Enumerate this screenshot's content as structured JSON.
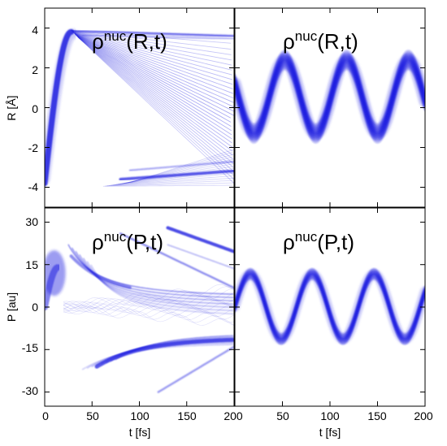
{
  "chart_data": [
    {
      "type": "heatmap",
      "panel": "top-left",
      "title": {
        "base": "ρ",
        "sup": "nuc",
        "args": "(R,t)"
      },
      "ylabel": "R [Å]",
      "xlim": [
        0,
        200
      ],
      "ylim": [
        -5,
        5
      ],
      "yticks": [
        "4",
        "2",
        "0",
        "-2",
        "-4"
      ],
      "yticks_values": [
        4,
        2,
        0,
        -2,
        -4
      ],
      "xticks_values": [
        0,
        50,
        100,
        150,
        200
      ],
      "color": "#1f1fe0",
      "grid": false
    },
    {
      "type": "heatmap",
      "panel": "top-right",
      "title": {
        "base": "ρ",
        "sup": "nuc",
        "args": "(R,t)"
      },
      "xlim": [
        0,
        200
      ],
      "ylim": [
        -5,
        5
      ],
      "xticks_values": [
        0,
        50,
        100,
        150,
        200
      ],
      "color": "#1f1fe0",
      "grid": false
    },
    {
      "type": "heatmap",
      "panel": "bottom-left",
      "title": {
        "base": "ρ",
        "sup": "nuc",
        "args": "(P,t)"
      },
      "ylabel": "P [au]",
      "xlabel": "t [fs]",
      "xlim": [
        0,
        200
      ],
      "ylim": [
        -35,
        35
      ],
      "yticks": [
        "30",
        "15",
        "0",
        "-15",
        "-30"
      ],
      "yticks_values": [
        30,
        15,
        0,
        -15,
        -30
      ],
      "xticks": [
        "0",
        "50",
        "100",
        "150",
        "200"
      ],
      "xticks_values": [
        0,
        50,
        100,
        150,
        200
      ],
      "color": "#1f1fe0",
      "grid": false
    },
    {
      "type": "heatmap",
      "panel": "bottom-right",
      "title": {
        "base": "ρ",
        "sup": "nuc",
        "args": "(P,t)"
      },
      "xlabel": "t [fs]",
      "xlim": [
        0,
        200
      ],
      "ylim": [
        -35,
        35
      ],
      "xticks": [
        "50",
        "100",
        "150",
        "200"
      ],
      "xticks_values": [
        50,
        100,
        150,
        200
      ],
      "color": "#1f1fe0",
      "grid": false
    }
  ]
}
